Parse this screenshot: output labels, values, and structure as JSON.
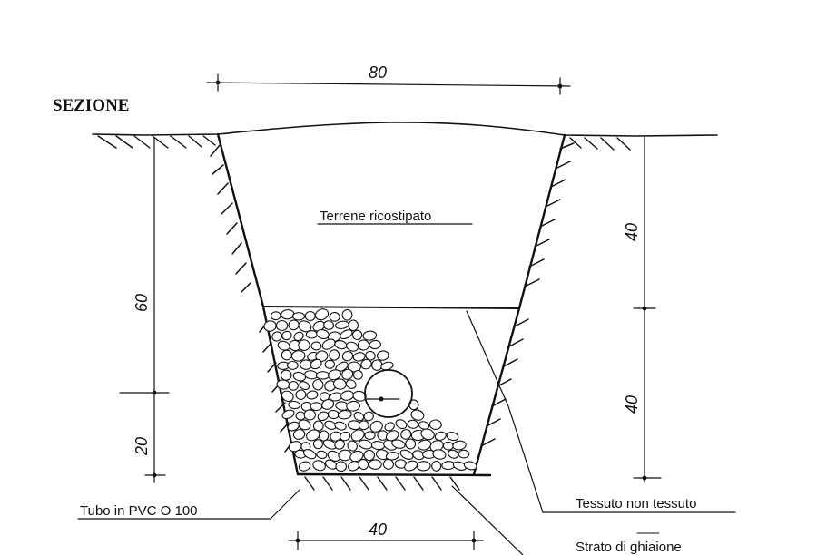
{
  "section_title": "SEZIONE",
  "dimensions": {
    "top_width": "80",
    "bottom_width": "40",
    "right_upper": "40",
    "right_lower": "40",
    "left_upper": "60",
    "left_lower": "20"
  },
  "labels": {
    "backfill": "Terrene ricostipato",
    "geotextile": "Tessuto non tessuto",
    "pipe": "Tubo in PVC O 100",
    "gravel": "Strato di ghiaione"
  }
}
